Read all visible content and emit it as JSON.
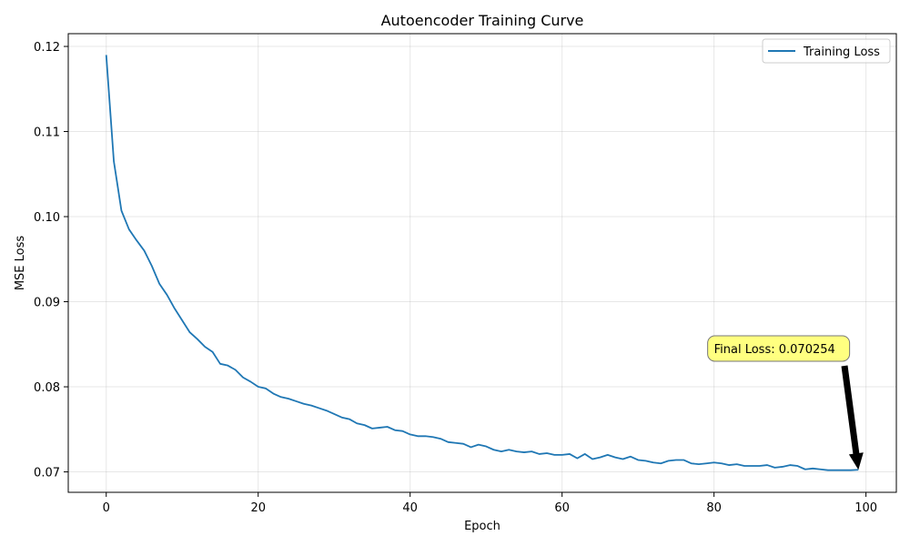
{
  "chart_data": {
    "type": "line",
    "title": "Autoencoder Training Curve",
    "xlabel": "Epoch",
    "ylabel": "MSE Loss",
    "xlim": [
      -5,
      104
    ],
    "ylim": [
      0.0676,
      0.1215
    ],
    "xticks": [
      0,
      20,
      40,
      60,
      80,
      100
    ],
    "yticks": [
      0.07,
      0.08,
      0.09,
      0.1,
      0.11,
      0.12
    ],
    "ytick_labels": [
      "0.07",
      "0.08",
      "0.09",
      "0.10",
      "0.11",
      "0.12"
    ],
    "grid": true,
    "legend_position": "top-right",
    "series": [
      {
        "name": "Training Loss",
        "color": "#1f77b4",
        "x": [
          0,
          1,
          2,
          3,
          4,
          5,
          6,
          7,
          8,
          9,
          10,
          11,
          12,
          13,
          14,
          15,
          16,
          17,
          18,
          19,
          20,
          21,
          22,
          23,
          24,
          25,
          26,
          27,
          28,
          29,
          30,
          31,
          32,
          33,
          34,
          35,
          36,
          37,
          38,
          39,
          40,
          41,
          42,
          43,
          44,
          45,
          46,
          47,
          48,
          49,
          50,
          51,
          52,
          53,
          54,
          55,
          56,
          57,
          58,
          59,
          60,
          61,
          62,
          63,
          64,
          65,
          66,
          67,
          68,
          69,
          70,
          71,
          72,
          73,
          74,
          75,
          76,
          77,
          78,
          79,
          80,
          81,
          82,
          83,
          84,
          85,
          86,
          87,
          88,
          89,
          90,
          91,
          92,
          93,
          94,
          95,
          96,
          97,
          98,
          99
        ],
        "y": [
          0.119,
          0.1065,
          0.1007,
          0.0985,
          0.0972,
          0.096,
          0.0942,
          0.0921,
          0.0908,
          0.0892,
          0.0878,
          0.0864,
          0.0856,
          0.0847,
          0.0841,
          0.0827,
          0.0825,
          0.082,
          0.0811,
          0.0806,
          0.08,
          0.0798,
          0.0792,
          0.0788,
          0.0786,
          0.0783,
          0.078,
          0.0778,
          0.0775,
          0.0772,
          0.0768,
          0.0764,
          0.0762,
          0.0757,
          0.0755,
          0.0751,
          0.0752,
          0.0753,
          0.0749,
          0.0748,
          0.0744,
          0.0742,
          0.0742,
          0.0741,
          0.0739,
          0.0735,
          0.0734,
          0.0733,
          0.0729,
          0.0732,
          0.073,
          0.0726,
          0.0724,
          0.0726,
          0.0724,
          0.0723,
          0.0724,
          0.0721,
          0.0722,
          0.072,
          0.072,
          0.0721,
          0.0716,
          0.0721,
          0.0715,
          0.0717,
          0.072,
          0.0717,
          0.0715,
          0.0718,
          0.0714,
          0.0713,
          0.0711,
          0.071,
          0.0713,
          0.0714,
          0.0714,
          0.071,
          0.0709,
          0.071,
          0.0711,
          0.071,
          0.0708,
          0.0709,
          0.0707,
          0.0707,
          0.0707,
          0.0708,
          0.0705,
          0.0706,
          0.0708,
          0.0707,
          0.0703,
          0.0704,
          0.0703,
          0.0702,
          0.0702,
          0.0702,
          0.0702,
          0.07025
        ]
      }
    ],
    "annotation": {
      "text": "Final Loss: 0.070254",
      "target_x": 99,
      "target_y": 0.070254,
      "text_x": 80,
      "text_y": 0.0845,
      "box_color": "#ffff80",
      "arrow_color": "#000000"
    }
  }
}
